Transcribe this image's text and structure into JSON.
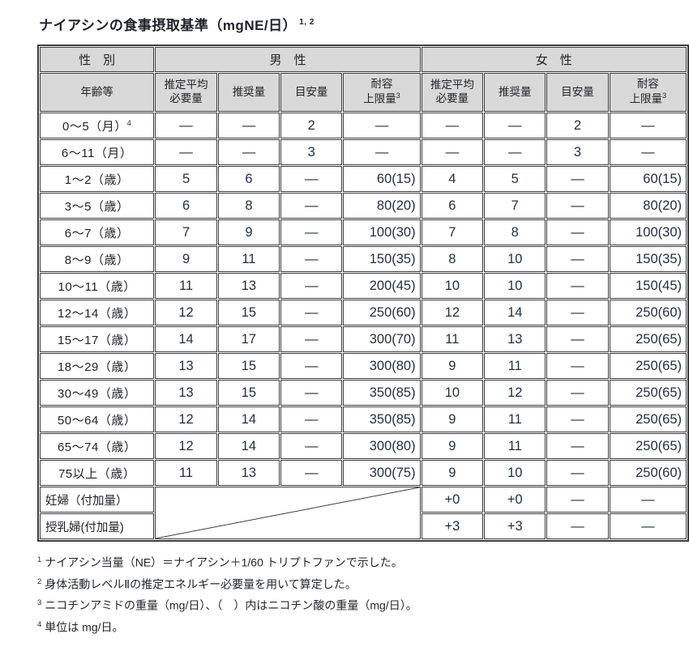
{
  "title": {
    "text": "ナイアシンの食事摂取基準（mgNE/日）",
    "sup": "1, 2"
  },
  "colors": {
    "header_bg": "#d9d9d9",
    "border": "#3b3b3b",
    "text": "#1f2227",
    "numeric_text": "#232f42",
    "page_bg": "#ffffff"
  },
  "table": {
    "gender_label": "性　別",
    "male_label": "男　性",
    "female_label": "女　性",
    "columns": {
      "age": "年齢等",
      "ear_line1": "推定平均",
      "ear_line2": "必要量",
      "rda": "推奨量",
      "ai": "目安量",
      "ul_line1": "耐容",
      "ul_line2": "上限量",
      "ul_sup": "3"
    },
    "rows": [
      {
        "age": "0～5（月）",
        "age_sup": "4",
        "m": [
          "—",
          "—",
          "2",
          "—"
        ],
        "f": [
          "—",
          "—",
          "2",
          "—"
        ]
      },
      {
        "age": "6～11（月）",
        "age_sup": "",
        "m": [
          "—",
          "—",
          "3",
          "—"
        ],
        "f": [
          "—",
          "—",
          "3",
          "—"
        ]
      },
      {
        "age": "1～2（歳）",
        "age_sup": "",
        "m": [
          "5",
          "6",
          "—",
          "60(15)"
        ],
        "f": [
          "4",
          "5",
          "—",
          "60(15)"
        ]
      },
      {
        "age": "3～5（歳）",
        "age_sup": "",
        "m": [
          "6",
          "8",
          "—",
          "80(20)"
        ],
        "f": [
          "6",
          "7",
          "—",
          "80(20)"
        ]
      },
      {
        "age": "6～7（歳）",
        "age_sup": "",
        "m": [
          "7",
          "9",
          "—",
          "100(30)"
        ],
        "f": [
          "7",
          "8",
          "—",
          "100(30)"
        ]
      },
      {
        "age": "8～9（歳）",
        "age_sup": "",
        "m": [
          "9",
          "11",
          "—",
          "150(35)"
        ],
        "f": [
          "8",
          "10",
          "—",
          "150(35)"
        ]
      },
      {
        "age": "10～11（歳）",
        "age_sup": "",
        "m": [
          "11",
          "13",
          "—",
          "200(45)"
        ],
        "f": [
          "10",
          "10",
          "—",
          "150(45)"
        ]
      },
      {
        "age": "12～14（歳）",
        "age_sup": "",
        "m": [
          "12",
          "15",
          "—",
          "250(60)"
        ],
        "f": [
          "12",
          "14",
          "—",
          "250(60)"
        ]
      },
      {
        "age": "15～17（歳）",
        "age_sup": "",
        "m": [
          "14",
          "17",
          "—",
          "300(70)"
        ],
        "f": [
          "11",
          "13",
          "—",
          "250(65)"
        ]
      },
      {
        "age": "18～29（歳）",
        "age_sup": "",
        "m": [
          "13",
          "15",
          "—",
          "300(80)"
        ],
        "f": [
          "9",
          "11",
          "—",
          "250(65)"
        ]
      },
      {
        "age": "30～49（歳）",
        "age_sup": "",
        "m": [
          "13",
          "15",
          "—",
          "350(85)"
        ],
        "f": [
          "10",
          "12",
          "—",
          "250(65)"
        ]
      },
      {
        "age": "50～64（歳）",
        "age_sup": "",
        "m": [
          "12",
          "14",
          "—",
          "350(85)"
        ],
        "f": [
          "9",
          "11",
          "—",
          "250(65)"
        ]
      },
      {
        "age": "65～74（歳）",
        "age_sup": "",
        "m": [
          "12",
          "14",
          "—",
          "300(80)"
        ],
        "f": [
          "9",
          "11",
          "—",
          "250(65)"
        ]
      },
      {
        "age": "75以上（歳）",
        "age_sup": "",
        "m": [
          "11",
          "13",
          "—",
          "300(75)"
        ],
        "f": [
          "9",
          "10",
          "—",
          "250(60)"
        ]
      }
    ],
    "special_rows": [
      {
        "label": "妊婦（付加量）",
        "f": [
          "+0",
          "+0",
          "—",
          "—"
        ]
      },
      {
        "label": "授乳婦(付加量)",
        "f": [
          "+3",
          "+3",
          "—",
          "—"
        ]
      }
    ]
  },
  "footnotes": [
    {
      "sup": "1",
      "text": "ナイアシン当量（NE）＝ナイアシン＋1/60 トリプトファンで示した。"
    },
    {
      "sup": "2",
      "text": "身体活動レベルⅡの推定エネルギー必要量を用いて算定した。"
    },
    {
      "sup": "3",
      "text": "ニコチンアミドの重量（mg/日）、（　）内はニコチン酸の重量（mg/日）。"
    },
    {
      "sup": "4",
      "text": "単位は mg/日。"
    }
  ]
}
